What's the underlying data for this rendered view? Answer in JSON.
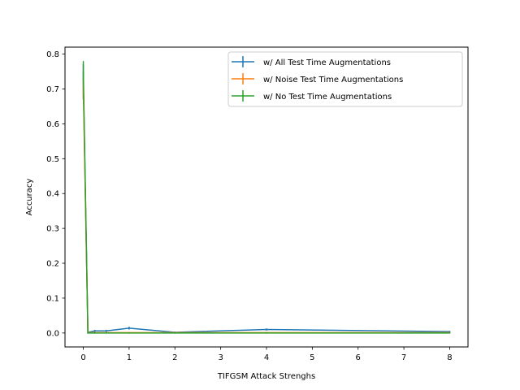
{
  "chart_data": {
    "type": "line",
    "xlabel": "TIFGSM Attack Strenghs",
    "ylabel": "Accuracy",
    "xlim": [
      -0.4,
      8.4
    ],
    "ylim": [
      -0.04,
      0.82
    ],
    "xticks": [
      "0",
      "1",
      "2",
      "3",
      "4",
      "5",
      "6",
      "7",
      "8"
    ],
    "yticks": [
      "0.0",
      "0.1",
      "0.2",
      "0.3",
      "0.4",
      "0.5",
      "0.6",
      "0.7",
      "0.8"
    ],
    "grid": false,
    "legend_position": "top-right",
    "series": [
      {
        "name": "w/ All Test Time Augmentations",
        "color": "#1f77b4",
        "x": [
          0,
          0.1,
          0.25,
          0.5,
          1,
          2,
          4,
          8
        ],
        "y": [
          0.72,
          0.002,
          0.006,
          0.006,
          0.014,
          0.002,
          0.01,
          0.004
        ],
        "err": [
          0.05,
          0.003,
          0.003,
          0.003,
          0.004,
          0.002,
          0.003,
          0.002
        ]
      },
      {
        "name": "w/ Noise Test Time Augmentations",
        "color": "#ff7f0e",
        "x": [
          0,
          0.1,
          0.25,
          0.5,
          1,
          2,
          4,
          8
        ],
        "y": [
          0.7,
          0.001,
          0.001,
          0.001,
          0.001,
          0.001,
          0.001,
          0.001
        ],
        "err": [
          0.03,
          0.001,
          0.001,
          0.001,
          0.001,
          0.001,
          0.001,
          0.001
        ]
      },
      {
        "name": "w/ No Test Time Augmentations",
        "color": "#2ca02c",
        "x": [
          0,
          0.1,
          0.25,
          0.5,
          1,
          2,
          4,
          8
        ],
        "y": [
          0.75,
          0.0,
          0.0,
          0.0,
          0.0,
          0.0,
          0.0,
          0.0
        ],
        "err": [
          0.03,
          0.001,
          0.001,
          0.001,
          0.001,
          0.001,
          0.001,
          0.001
        ]
      }
    ]
  }
}
